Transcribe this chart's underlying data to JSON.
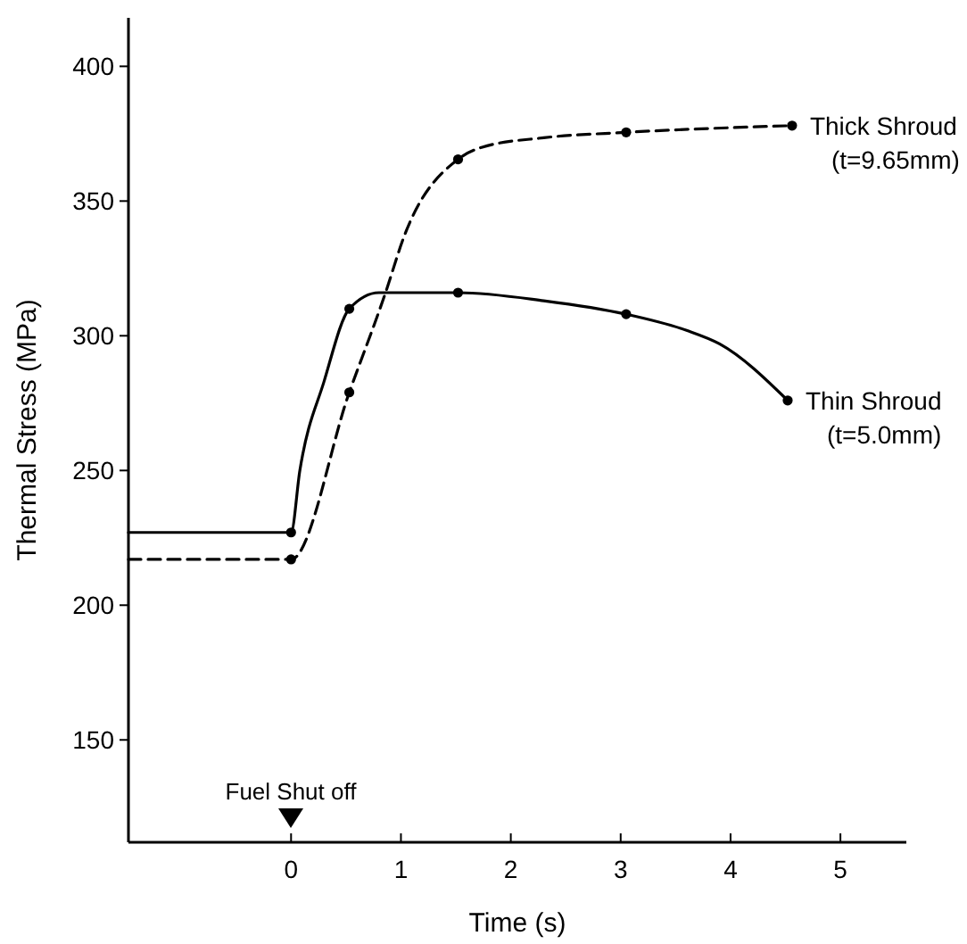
{
  "chart_data": {
    "type": "line",
    "xlabel": "Time (s)",
    "ylabel": "Thermal Stress (MPa)",
    "xlim": [
      -1.48,
      5.6
    ],
    "ylim": [
      112,
      418
    ],
    "xticks": [
      0,
      1,
      2,
      3,
      4,
      5
    ],
    "yticks": [
      150,
      200,
      250,
      300,
      350,
      400
    ],
    "grid": false,
    "series": [
      {
        "name": "Thick Shroud (t=9.65mm)",
        "color": "#000000",
        "line_style": "dashed",
        "marker": "none",
        "x": [
          -1.48,
          0,
          0.53,
          0.86,
          1.03,
          1.52,
          1.74,
          2.3,
          3.05,
          4.56
        ],
        "values": [
          217,
          217,
          279,
          316,
          337,
          365.5,
          370,
          373.5,
          375.5,
          378
        ]
      },
      {
        "type": "scatter",
        "color": "#000000",
        "marker": "circle",
        "x": [
          0,
          0.53,
          1.52,
          3.05,
          4.56
        ],
        "values": [
          217,
          279,
          365.5,
          375.5,
          378
        ]
      },
      {
        "name": "Thin Shroud (t=5.0mm)",
        "color": "#000000",
        "line_style": "solid",
        "marker": "none",
        "x": [
          -1.48,
          0,
          0.08,
          0.3,
          0.53,
          0.8,
          1.52,
          2.3,
          3.05,
          3.6,
          3.9,
          4.52
        ],
        "values": [
          227,
          227,
          250,
          283,
          310,
          316,
          316,
          313,
          308,
          302,
          297,
          276
        ]
      },
      {
        "type": "scatter",
        "color": "#000000",
        "marker": "circle",
        "x": [
          0,
          0.53,
          1.52,
          3.05,
          4.52
        ],
        "values": [
          227,
          310,
          316,
          308,
          276
        ]
      }
    ],
    "annotations": [
      "Fuel Shut off"
    ]
  }
}
